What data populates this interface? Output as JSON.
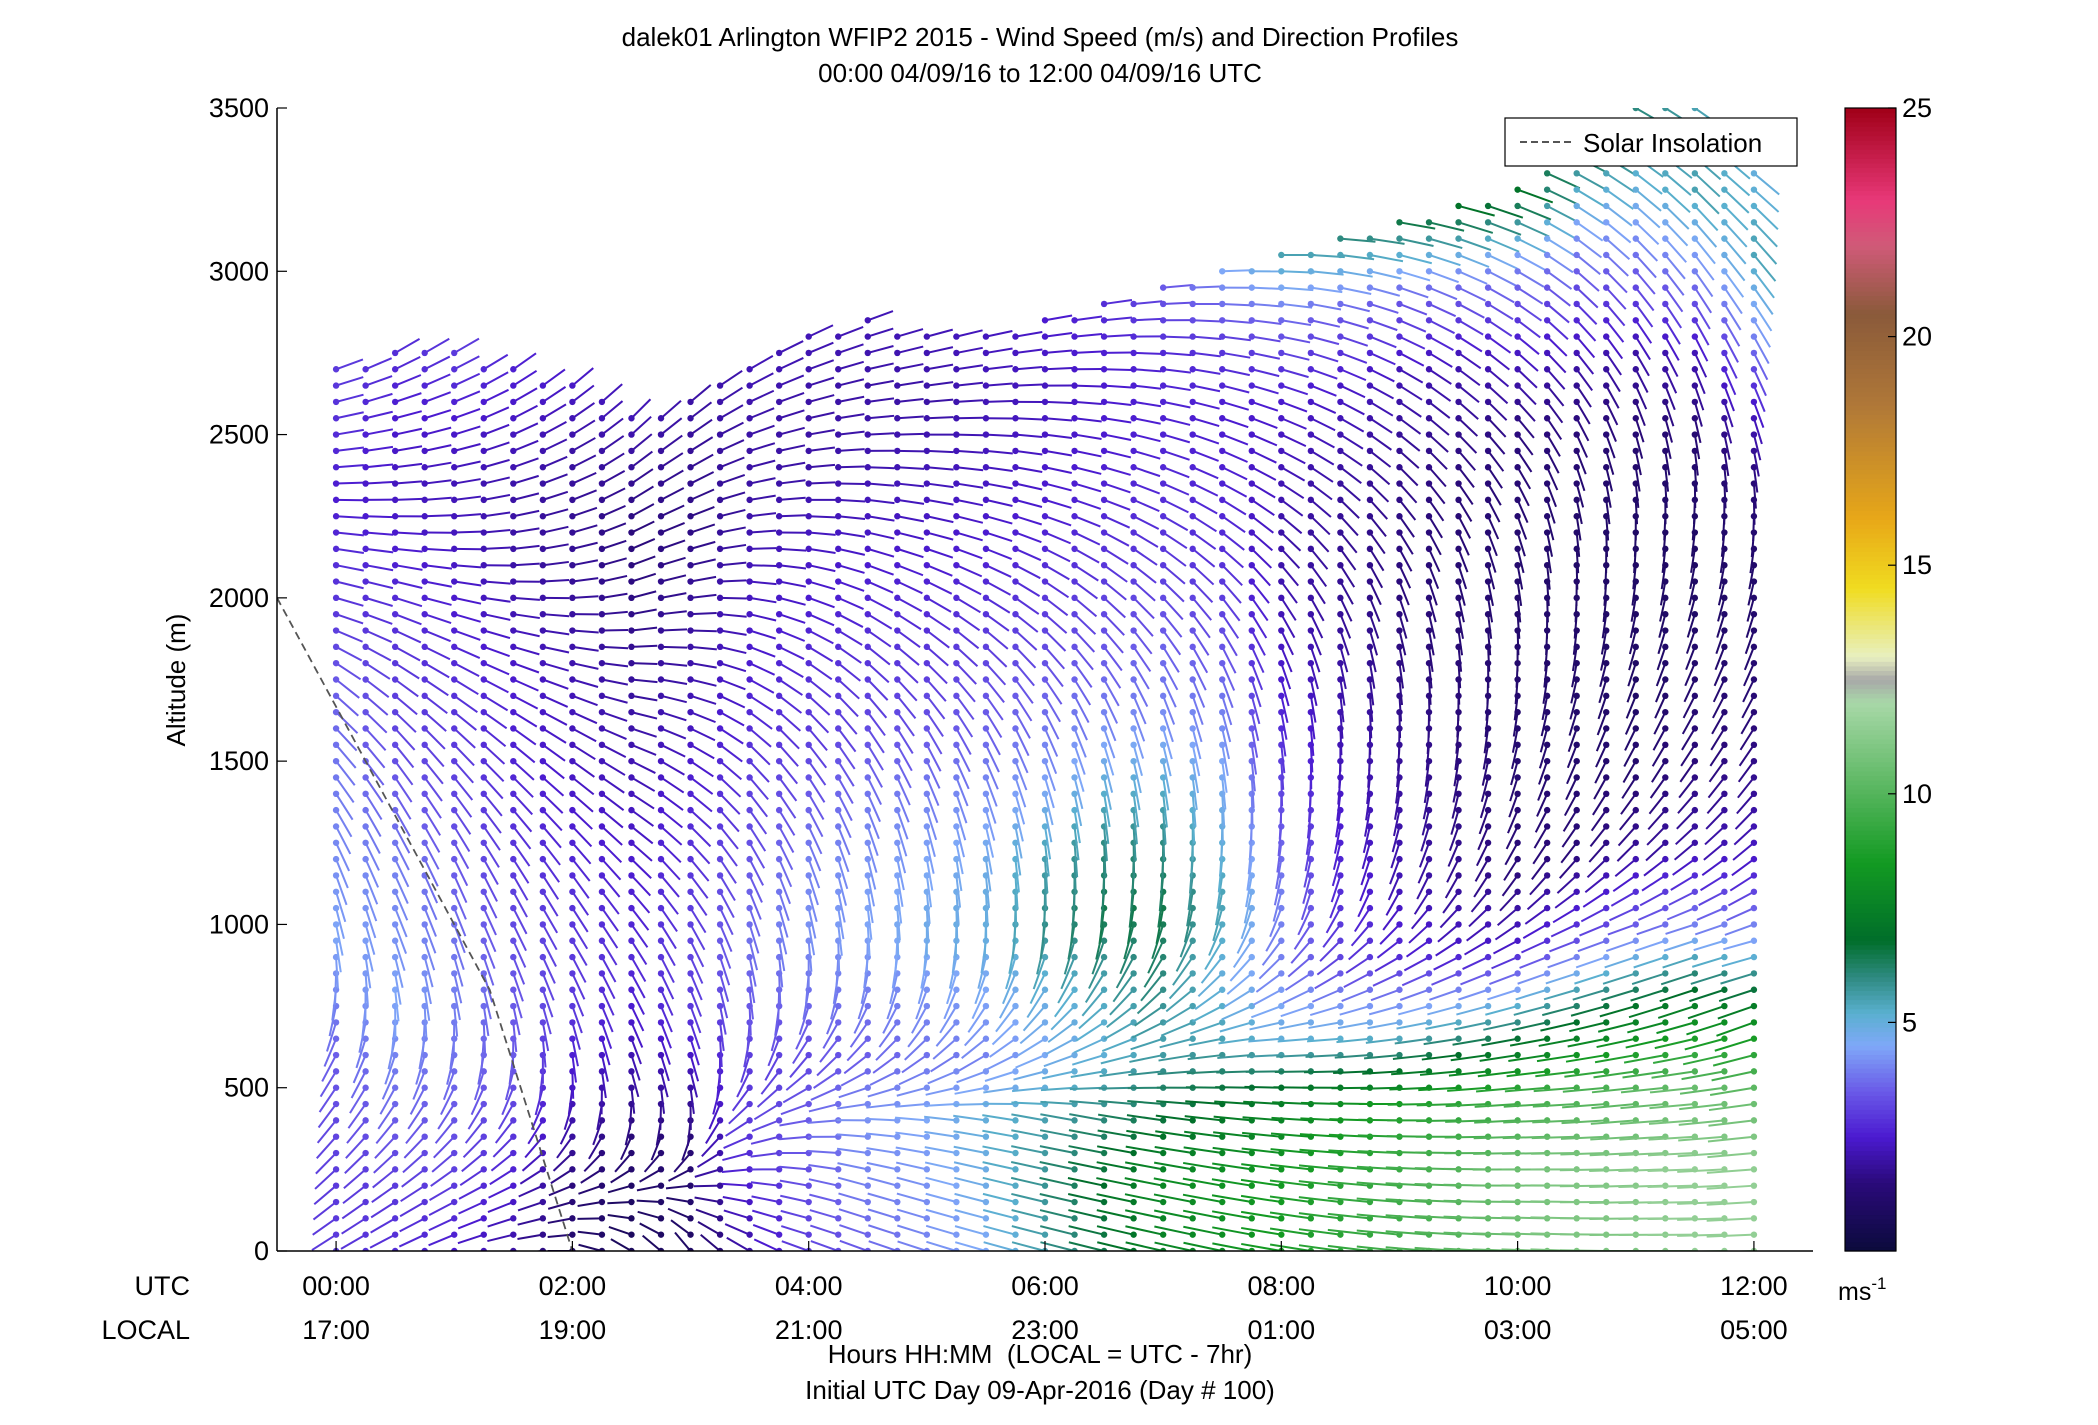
{
  "chart_data": {
    "type": "wind-barb-profile",
    "title": "dalek01 Arlington WFIP2 2015 - Wind Speed (m/s) and Direction Profiles",
    "subtitle": "00:00 04/09/16 to 12:00 04/09/16  UTC",
    "ylabel": "Altitude (m)",
    "xlabel": "Hours HH:MM  (LOCAL = UTC - 7hr)",
    "xlabel2": "Initial UTC Day 09-Apr-2016 (Day # 100)",
    "row_label_utc": "UTC",
    "row_label_local": "LOCAL",
    "xlim_hours": [
      -0.5,
      12.5
    ],
    "ylim": [
      0,
      3500
    ],
    "yticks": [
      0,
      500,
      1000,
      1500,
      2000,
      2500,
      3000,
      3500
    ],
    "ytick_labels": [
      "0",
      "500",
      "1000",
      "1500",
      "2000",
      "2500",
      "3000",
      "3500"
    ],
    "xticks_hours": [
      0,
      2,
      4,
      6,
      8,
      10,
      12
    ],
    "xtick_labels_utc": [
      "00:00",
      "02:00",
      "04:00",
      "06:00",
      "08:00",
      "10:00",
      "12:00"
    ],
    "xtick_labels_local": [
      "17:00",
      "19:00",
      "21:00",
      "23:00",
      "01:00",
      "03:00",
      "05:00"
    ],
    "legend": {
      "entries": [
        "Solar Insolation"
      ],
      "location": "top-right"
    },
    "solar_insolation": {
      "x_hours": [
        -0.5,
        1.3,
        2.0
      ],
      "altitude": [
        2000,
        800,
        0
      ]
    },
    "colorbar": {
      "min": 0,
      "max": 25,
      "ticks": [
        5,
        10,
        15,
        20,
        25
      ],
      "tick_labels": [
        "5",
        "10",
        "15",
        "20",
        "25"
      ],
      "unit_label": "ms",
      "unit_exponent": "-1",
      "colormap": [
        [
          0,
          "#0b0b3b"
        ],
        [
          1.5,
          "#2a0a7a"
        ],
        [
          2.5,
          "#4b1ad0"
        ],
        [
          3.5,
          "#6a5ae8"
        ],
        [
          4.5,
          "#7fa8f8"
        ],
        [
          5.2,
          "#5ab0d0"
        ],
        [
          6.0,
          "#2e8a80"
        ],
        [
          6.8,
          "#006e2a"
        ],
        [
          8.5,
          "#139a22"
        ],
        [
          10.5,
          "#69bd6e"
        ],
        [
          12.0,
          "#a8d8a8"
        ],
        [
          12.5,
          "#a8a8a8"
        ],
        [
          13.0,
          "#e8f0c0"
        ],
        [
          14.5,
          "#f0dc20"
        ],
        [
          16.0,
          "#e8a818"
        ],
        [
          18.5,
          "#b07838"
        ],
        [
          20.5,
          "#8a5a3a"
        ],
        [
          22.0,
          "#d05a78"
        ],
        [
          23.0,
          "#e83878"
        ],
        [
          25.0,
          "#a00018"
        ]
      ]
    },
    "profiles": [
      {
        "t": 0.0,
        "top": 2700,
        "speed": [
          3.0,
          3.0,
          3.2,
          3.5,
          4.0,
          4.5,
          4.2,
          4.0,
          3.8,
          3.5,
          3.0,
          2.8,
          2.5,
          2.8,
          3.0
        ],
        "dir": [
          120,
          130,
          140,
          150,
          170,
          190,
          200,
          210,
          220,
          230,
          250,
          260,
          270,
          280,
          290
        ]
      },
      {
        "t": 0.5,
        "top": 2750,
        "speed": [
          2.8,
          3.0,
          3.5,
          4.0,
          4.5,
          4.2,
          4.0,
          3.6,
          3.2,
          3.0,
          2.8,
          2.5,
          2.3,
          2.5,
          2.8
        ],
        "dir": [
          115,
          125,
          140,
          160,
          185,
          200,
          205,
          210,
          220,
          235,
          250,
          265,
          275,
          285,
          300
        ]
      },
      {
        "t": 1.0,
        "top": 2750,
        "speed": [
          2.5,
          3.0,
          3.4,
          3.8,
          4.0,
          3.8,
          3.5,
          3.2,
          3.0,
          2.8,
          2.5,
          2.3,
          2.2,
          2.5,
          3.0
        ],
        "dir": [
          110,
          120,
          140,
          165,
          190,
          200,
          205,
          215,
          225,
          240,
          255,
          270,
          280,
          290,
          300
        ]
      },
      {
        "t": 1.5,
        "top": 2700,
        "speed": [
          2.0,
          2.5,
          3.0,
          3.5,
          3.5,
          3.3,
          3.0,
          2.8,
          2.6,
          2.5,
          2.2,
          2.0,
          2.0,
          2.3,
          2.6
        ],
        "dir": [
          100,
          115,
          140,
          170,
          195,
          205,
          210,
          220,
          230,
          245,
          260,
          275,
          285,
          295,
          305
        ]
      },
      {
        "t": 2.0,
        "top": 2650,
        "speed": [
          1.2,
          1.5,
          2.0,
          2.5,
          3.0,
          3.0,
          2.8,
          2.5,
          2.3,
          2.2,
          2.0,
          1.8,
          1.8,
          2.0,
          2.4
        ],
        "dir": [
          90,
          110,
          150,
          185,
          200,
          210,
          215,
          225,
          235,
          250,
          265,
          280,
          290,
          300,
          310
        ]
      },
      {
        "t": 2.5,
        "top": 2550,
        "speed": [
          0.8,
          1.0,
          1.5,
          2.0,
          2.5,
          2.8,
          2.6,
          2.4,
          2.2,
          2.0,
          1.8,
          1.6,
          1.5,
          1.8,
          2.2
        ],
        "dir": [
          60,
          100,
          160,
          195,
          205,
          210,
          220,
          230,
          240,
          255,
          270,
          285,
          295,
          305,
          315
        ]
      },
      {
        "t": 3.0,
        "top": 2600,
        "speed": [
          1.0,
          1.2,
          1.5,
          2.2,
          3.0,
          3.2,
          3.0,
          2.8,
          2.5,
          2.2,
          2.0,
          1.8,
          1.6,
          1.8,
          2.0
        ],
        "dir": [
          40,
          90,
          170,
          195,
          200,
          205,
          215,
          225,
          235,
          250,
          265,
          280,
          290,
          300,
          310
        ]
      },
      {
        "t": 3.5,
        "top": 2700,
        "speed": [
          2.0,
          2.5,
          3.0,
          3.0,
          3.5,
          3.8,
          3.5,
          3.2,
          2.9,
          2.6,
          2.4,
          2.2,
          2.0,
          2.0,
          2.2
        ],
        "dir": [
          60,
          85,
          120,
          160,
          185,
          195,
          205,
          215,
          225,
          240,
          255,
          270,
          280,
          290,
          300
        ]
      },
      {
        "t": 4.0,
        "top": 2800,
        "speed": [
          3.0,
          3.3,
          3.5,
          3.2,
          3.8,
          4.2,
          4.0,
          3.5,
          3.0,
          2.8,
          2.5,
          2.3,
          2.0,
          2.0,
          2.2
        ],
        "dir": [
          70,
          80,
          100,
          140,
          170,
          190,
          200,
          210,
          220,
          235,
          250,
          265,
          275,
          285,
          295
        ]
      },
      {
        "t": 4.5,
        "top": 2850,
        "speed": [
          3.5,
          4.0,
          4.2,
          3.5,
          4.0,
          4.5,
          4.2,
          3.8,
          3.2,
          2.9,
          2.6,
          2.3,
          2.1,
          2.0,
          2.2
        ],
        "dir": [
          70,
          75,
          90,
          130,
          165,
          185,
          195,
          205,
          215,
          230,
          245,
          260,
          270,
          280,
          290
        ]
      },
      {
        "t": 5.0,
        "top": 2800,
        "speed": [
          4.0,
          4.2,
          4.5,
          3.8,
          4.2,
          4.8,
          4.5,
          4.0,
          3.4,
          3.0,
          2.7,
          2.4,
          2.2,
          2.0,
          2.2
        ],
        "dir": [
          72,
          75,
          85,
          125,
          160,
          180,
          190,
          200,
          210,
          225,
          240,
          255,
          265,
          275,
          285
        ]
      },
      {
        "t": 5.5,
        "top": 2800,
        "speed": [
          4.5,
          4.8,
          5.0,
          4.0,
          4.5,
          5.0,
          4.8,
          4.2,
          3.6,
          3.2,
          2.8,
          2.5,
          2.3,
          2.2,
          2.3
        ],
        "dir": [
          74,
          76,
          82,
          120,
          155,
          178,
          188,
          198,
          208,
          222,
          238,
          252,
          262,
          272,
          282
        ]
      },
      {
        "t": 6.0,
        "top": 2850,
        "speed": [
          5.5,
          5.8,
          5.5,
          4.5,
          5.0,
          6.0,
          5.5,
          4.5,
          3.8,
          3.3,
          2.9,
          2.6,
          2.4,
          2.3,
          2.5
        ],
        "dir": [
          75,
          77,
          80,
          115,
          150,
          175,
          185,
          195,
          205,
          220,
          235,
          250,
          260,
          270,
          280
        ]
      },
      {
        "t": 6.5,
        "top": 2900,
        "speed": [
          6.5,
          6.8,
          6.0,
          5.0,
          5.5,
          6.5,
          6.0,
          5.0,
          4.0,
          3.4,
          3.0,
          2.7,
          2.5,
          2.5,
          2.8
        ],
        "dir": [
          76,
          78,
          80,
          110,
          145,
          172,
          182,
          192,
          202,
          218,
          232,
          248,
          258,
          268,
          278
        ]
      },
      {
        "t": 7.0,
        "top": 2950,
        "speed": [
          7.5,
          7.8,
          6.5,
          5.5,
          6.0,
          6.5,
          6.0,
          5.0,
          4.0,
          3.5,
          3.0,
          2.8,
          2.6,
          2.7,
          3.5
        ],
        "dir": [
          77,
          79,
          82,
          105,
          140,
          170,
          180,
          190,
          200,
          215,
          230,
          245,
          255,
          265,
          275
        ]
      },
      {
        "t": 7.5,
        "top": 3000,
        "speed": [
          8.0,
          8.2,
          7.0,
          5.5,
          5.0,
          5.5,
          5.0,
          4.5,
          3.8,
          3.2,
          2.8,
          2.6,
          2.5,
          3.0,
          4.5
        ],
        "dir": [
          78,
          80,
          84,
          100,
          135,
          168,
          178,
          188,
          198,
          212,
          228,
          242,
          252,
          262,
          272
        ]
      },
      {
        "t": 8.0,
        "top": 3050,
        "speed": [
          8.5,
          8.5,
          7.5,
          5.0,
          4.0,
          4.0,
          3.5,
          3.0,
          2.5,
          2.2,
          2.0,
          2.2,
          2.5,
          3.5,
          5.5
        ],
        "dir": [
          80,
          82,
          86,
          95,
          130,
          165,
          175,
          185,
          195,
          210,
          225,
          240,
          250,
          260,
          270
        ]
      },
      {
        "t": 8.5,
        "top": 3100,
        "speed": [
          9.0,
          9.0,
          8.0,
          5.0,
          3.2,
          2.8,
          2.5,
          2.2,
          2.0,
          1.8,
          1.8,
          2.0,
          2.4,
          3.5,
          6.0
        ],
        "dir": [
          82,
          84,
          88,
          95,
          125,
          160,
          170,
          180,
          190,
          205,
          220,
          235,
          245,
          255,
          265
        ]
      },
      {
        "t": 9.0,
        "top": 3150,
        "speed": [
          9.5,
          9.5,
          8.5,
          5.0,
          2.8,
          2.2,
          2.0,
          1.8,
          1.6,
          1.5,
          1.6,
          1.8,
          2.2,
          3.5,
          6.5
        ],
        "dir": [
          84,
          86,
          90,
          98,
          120,
          155,
          168,
          178,
          188,
          200,
          215,
          230,
          240,
          250,
          260
        ]
      },
      {
        "t": 9.5,
        "top": 3200,
        "speed": [
          10.0,
          10.0,
          9.0,
          5.5,
          2.5,
          1.8,
          1.6,
          1.5,
          1.4,
          1.3,
          1.4,
          1.7,
          2.2,
          3.8,
          7.0
        ],
        "dir": [
          86,
          88,
          92,
          100,
          118,
          150,
          165,
          175,
          185,
          195,
          210,
          225,
          235,
          245,
          255
        ]
      },
      {
        "t": 10.0,
        "top": 3250,
        "speed": [
          10.5,
          10.5,
          9.5,
          6.0,
          2.5,
          1.5,
          1.3,
          1.2,
          1.2,
          1.2,
          1.3,
          1.6,
          2.5,
          4.0,
          7.0
        ],
        "dir": [
          88,
          90,
          94,
          102,
          115,
          145,
          160,
          170,
          180,
          190,
          205,
          220,
          230,
          240,
          250
        ]
      },
      {
        "t": 10.5,
        "top": 3400,
        "speed": [
          11.0,
          11.0,
          9.8,
          6.5,
          3.0,
          1.5,
          1.2,
          1.1,
          1.1,
          1.1,
          1.3,
          1.8,
          3.0,
          4.5,
          6.5
        ],
        "dir": [
          88,
          90,
          94,
          104,
          112,
          140,
          155,
          165,
          175,
          185,
          200,
          215,
          225,
          235,
          245
        ]
      },
      {
        "t": 11.0,
        "top": 3500,
        "speed": [
          11.0,
          11.2,
          10.0,
          7.0,
          3.5,
          1.8,
          1.2,
          1.0,
          1.0,
          1.0,
          1.3,
          2.0,
          3.5,
          5.0,
          6.0
        ],
        "dir": [
          90,
          92,
          96,
          106,
          110,
          135,
          150,
          160,
          170,
          180,
          195,
          210,
          220,
          230,
          240
        ]
      },
      {
        "t": 11.5,
        "top": 3500,
        "speed": [
          11.5,
          11.5,
          10.5,
          7.5,
          4.0,
          2.0,
          1.5,
          1.2,
          1.0,
          1.0,
          1.3,
          2.2,
          4.0,
          5.5,
          5.5
        ],
        "dir": [
          90,
          92,
          96,
          108,
          108,
          130,
          145,
          155,
          165,
          175,
          190,
          205,
          215,
          225,
          235
        ]
      },
      {
        "t": 12.0,
        "top": 3300,
        "speed": [
          11.5,
          11.5,
          10.5,
          8.0,
          4.5,
          2.5,
          1.8,
          1.4,
          1.2,
          1.1,
          1.4,
          2.4,
          4.2,
          5.5,
          5.0
        ],
        "dir": [
          92,
          94,
          98,
          110,
          105,
          125,
          140,
          150,
          160,
          170,
          185,
          200,
          210,
          220,
          230
        ]
      }
    ]
  }
}
